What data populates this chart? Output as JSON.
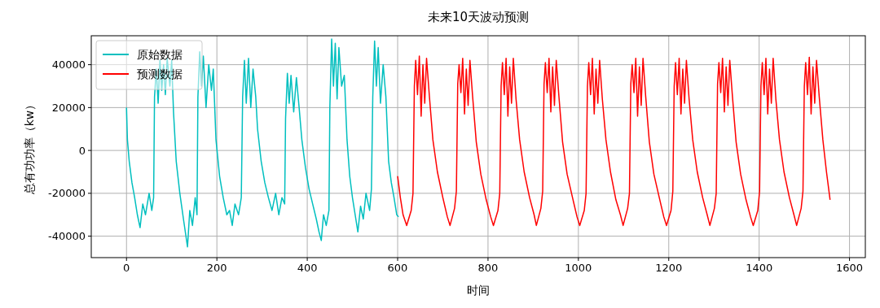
{
  "chart_data": {
    "type": "line",
    "title": "未来10天波动预测",
    "xlabel": "时间",
    "ylabel": "总有功功率（kw）",
    "xlim": [
      -78,
      1635
    ],
    "ylim": [
      -50000,
      53500
    ],
    "xticks": [
      0,
      200,
      400,
      600,
      800,
      1000,
      1200,
      1400,
      1600
    ],
    "yticks": [
      -40000,
      -20000,
      0,
      20000,
      40000
    ],
    "grid": true,
    "legend": "top left",
    "series": [
      {
        "name": "原始数据",
        "color": "#00bfbf",
        "x": [
          0,
          2,
          6,
          12,
          18,
          24,
          30,
          36,
          42,
          50,
          56,
          60,
          62,
          66,
          70,
          74,
          78,
          82,
          86,
          90,
          96,
          100,
          104,
          110,
          118,
          126,
          135,
          140,
          146,
          152,
          156,
          158,
          162,
          166,
          170,
          176,
          182,
          188,
          192,
          198,
          206,
          214,
          222,
          228,
          234,
          240,
          248,
          254,
          257,
          261,
          265,
          270,
          275,
          280,
          286,
          290,
          298,
          306,
          314,
          322,
          330,
          337,
          344,
          350,
          352,
          356,
          360,
          364,
          370,
          376,
          382,
          388,
          396,
          404,
          412,
          420,
          426,
          431,
          436,
          442,
          448,
          450,
          454,
          458,
          462,
          466,
          470,
          476,
          482,
          488,
          494,
          500,
          506,
          512,
          518,
          524,
          530,
          538,
          542,
          545,
          549,
          553,
          557,
          562,
          568,
          574,
          580,
          586,
          592,
          598,
          602
        ],
        "values": [
          20000,
          5000,
          -5000,
          -15000,
          -22000,
          -30000,
          -36000,
          -25000,
          -30000,
          -20000,
          -28000,
          -22000,
          25000,
          38000,
          22000,
          42000,
          28000,
          40000,
          26000,
          43000,
          30000,
          42000,
          18000,
          -5000,
          -20000,
          -32000,
          -45000,
          -28000,
          -35000,
          -22000,
          -30000,
          25000,
          46000,
          30000,
          44000,
          20000,
          40000,
          28000,
          38000,
          5000,
          -12000,
          -22000,
          -30000,
          -28000,
          -35000,
          -25000,
          -30000,
          -22000,
          25000,
          42000,
          22000,
          43000,
          20000,
          38000,
          25000,
          10000,
          -5000,
          -15000,
          -22000,
          -28000,
          -20000,
          -30000,
          -22000,
          -25000,
          15000,
          36000,
          22000,
          35000,
          18000,
          34000,
          20000,
          5000,
          -8000,
          -18000,
          -25000,
          -32000,
          -38000,
          -42000,
          -30000,
          -35000,
          -28000,
          20000,
          52000,
          30000,
          50000,
          24000,
          48000,
          30000,
          35000,
          5000,
          -12000,
          -22000,
          -30000,
          -38000,
          -26000,
          -32000,
          -20000,
          -28000,
          -18000,
          25000,
          51000,
          30000,
          48000,
          22000,
          40000,
          25000,
          -5000,
          -15000,
          -22000,
          -30000,
          -31000
        ]
      },
      {
        "name": "预测数据",
        "color": "#ff0000",
        "x": [
          600,
          606,
          612,
          620,
          630,
          634,
          637,
          640,
          644,
          648,
          652,
          656,
          660,
          664,
          670,
          678,
          688,
          700,
          710,
          716,
          726,
          730,
          733,
          736,
          740,
          744,
          748,
          752,
          756,
          760,
          766,
          774,
          784,
          796,
          806,
          812,
          822,
          826,
          829,
          832,
          836,
          840,
          844,
          848,
          852,
          856,
          862,
          870,
          880,
          892,
          902,
          907,
          917,
          921,
          924,
          927,
          931,
          935,
          939,
          943,
          947,
          951,
          957,
          965,
          975,
          987,
          997,
          1003,
          1013,
          1017,
          1020,
          1023,
          1027,
          1031,
          1035,
          1039,
          1043,
          1047,
          1053,
          1061,
          1071,
          1083,
          1093,
          1099,
          1109,
          1113,
          1116,
          1119,
          1123,
          1127,
          1131,
          1135,
          1139,
          1143,
          1149,
          1157,
          1167,
          1179,
          1189,
          1195,
          1205,
          1209,
          1212,
          1215,
          1219,
          1223,
          1227,
          1231,
          1235,
          1239,
          1245,
          1253,
          1263,
          1275,
          1285,
          1291,
          1301,
          1305,
          1308,
          1311,
          1315,
          1319,
          1323,
          1327,
          1331,
          1335,
          1341,
          1349,
          1359,
          1371,
          1381,
          1387,
          1397,
          1401,
          1404,
          1407,
          1411,
          1415,
          1419,
          1423,
          1427,
          1431,
          1437,
          1445,
          1455,
          1467,
          1477,
          1483,
          1493,
          1497,
          1500,
          1503,
          1507,
          1511,
          1515,
          1519,
          1523,
          1527,
          1533,
          1541,
          1549,
          1557
        ],
        "values": [
          -12000,
          -22000,
          -30000,
          -35000,
          -28000,
          -20000,
          30000,
          42000,
          26000,
          44000,
          16000,
          40000,
          22000,
          43000,
          26000,
          5000,
          -10000,
          -22000,
          -31000,
          -35000,
          -27000,
          -19000,
          31000,
          40000,
          27000,
          43000,
          17000,
          38000,
          21000,
          42000,
          25000,
          4000,
          -11000,
          -23000,
          -31000,
          -35000,
          -28000,
          -20000,
          30000,
          41000,
          26000,
          43000,
          16000,
          39000,
          22000,
          43000,
          24000,
          5000,
          -10000,
          -22000,
          -30000,
          -35000,
          -27000,
          -19000,
          31000,
          41000,
          27000,
          43000,
          18000,
          39000,
          21000,
          42000,
          25000,
          4000,
          -11000,
          -22000,
          -31000,
          -35000,
          -28000,
          -20000,
          30000,
          41000,
          26000,
          43000,
          17000,
          38000,
          22000,
          42000,
          24000,
          5000,
          -10000,
          -23000,
          -30000,
          -35000,
          -27000,
          -20000,
          31000,
          40000,
          27000,
          43000,
          16000,
          39000,
          21000,
          43000,
          25000,
          4000,
          -11000,
          -22000,
          -31000,
          -35000,
          -28000,
          -19000,
          30000,
          41000,
          26000,
          43000,
          17000,
          38000,
          22000,
          42000,
          24000,
          5000,
          -10000,
          -22000,
          -30000,
          -35000,
          -27000,
          -20000,
          31000,
          41000,
          27000,
          43000,
          18000,
          39000,
          21000,
          42000,
          25000,
          4000,
          -11000,
          -23000,
          -31000,
          -35000,
          -28000,
          -19000,
          30000,
          41000,
          26000,
          43000,
          17000,
          38000,
          22000,
          43000,
          24000,
          5000,
          -10000,
          -22000,
          -30000,
          -35000,
          -27000,
          -19000,
          30000,
          41000,
          26000,
          43500,
          17000,
          39000,
          22000,
          42000,
          25000,
          5000,
          -10000,
          -23000
        ]
      }
    ]
  }
}
